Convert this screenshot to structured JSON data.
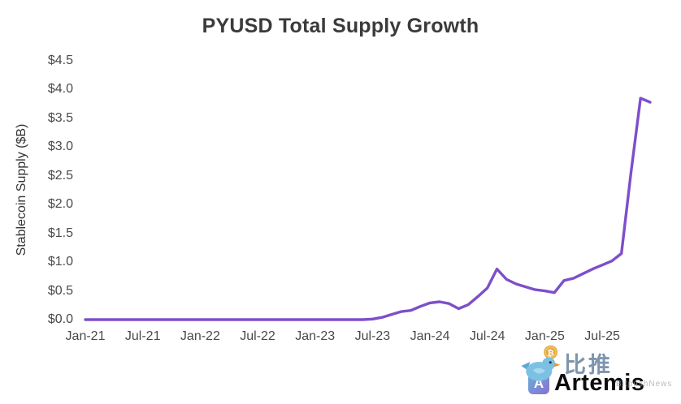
{
  "title": "PYUSD Total Supply Growth",
  "watermark": {
    "bitpush_text": "比推",
    "bitpush_sub": "BitpushNews",
    "artemis_text": "Artemis"
  },
  "chart_data": {
    "type": "line",
    "title": "PYUSD Total Supply Growth",
    "xlabel": "",
    "ylabel": "Stablecoin Supply ($B)",
    "ylim": [
      0,
      4.5
    ],
    "grid": false,
    "legend": "none",
    "line_color": "#7D4FC9",
    "y_ticks": [
      "$0.0",
      "$0.5",
      "$1.0",
      "$1.5",
      "$2.0",
      "$2.5",
      "$3.0",
      "$3.5",
      "$4.0",
      "$4.5"
    ],
    "y_tick_values": [
      0,
      0.5,
      1.0,
      1.5,
      2.0,
      2.5,
      3.0,
      3.5,
      4.0,
      4.5
    ],
    "x_tick_labels": [
      "Jan-21",
      "Jul-21",
      "Jan-22",
      "Jul-22",
      "Jan-23",
      "Jul-23",
      "Jan-24",
      "Jul-24",
      "Jan-25",
      "Jul-25"
    ],
    "x_tick_indices": [
      0,
      6,
      12,
      18,
      24,
      30,
      36,
      42,
      48,
      54
    ],
    "x": [
      "Jan-21",
      "Feb-21",
      "Mar-21",
      "Apr-21",
      "May-21",
      "Jun-21",
      "Jul-21",
      "Aug-21",
      "Sep-21",
      "Oct-21",
      "Nov-21",
      "Dec-21",
      "Jan-22",
      "Feb-22",
      "Mar-22",
      "Apr-22",
      "May-22",
      "Jun-22",
      "Jul-22",
      "Aug-22",
      "Sep-22",
      "Oct-22",
      "Nov-22",
      "Dec-22",
      "Jan-23",
      "Feb-23",
      "Mar-23",
      "Apr-23",
      "May-23",
      "Jun-23",
      "Jul-23",
      "Aug-23",
      "Sep-23",
      "Oct-23",
      "Nov-23",
      "Dec-23",
      "Jan-24",
      "Feb-24",
      "Mar-24",
      "Apr-24",
      "May-24",
      "Jun-24",
      "Jul-24",
      "Aug-24",
      "Sep-24",
      "Oct-24",
      "Nov-24",
      "Dec-24",
      "Jan-25",
      "Feb-25",
      "Mar-25",
      "Apr-25",
      "May-25",
      "Jun-25",
      "Jul-25",
      "Aug-25",
      "Sep-25",
      "Oct-25",
      "Nov-25",
      "Dec-25"
    ],
    "values": [
      0,
      0,
      0,
      0,
      0,
      0,
      0,
      0,
      0,
      0,
      0,
      0,
      0,
      0,
      0,
      0,
      0,
      0,
      0,
      0,
      0,
      0,
      0,
      0,
      0,
      0,
      0,
      0,
      0,
      0,
      0.01,
      0.04,
      0.09,
      0.14,
      0.16,
      0.23,
      0.29,
      0.31,
      0.28,
      0.19,
      0.26,
      0.4,
      0.55,
      0.88,
      0.7,
      0.62,
      0.57,
      0.52,
      0.5,
      0.47,
      0.68,
      0.72,
      0.8,
      0.88,
      0.95,
      1.02,
      1.15,
      2.55,
      3.85,
      3.78
    ]
  }
}
